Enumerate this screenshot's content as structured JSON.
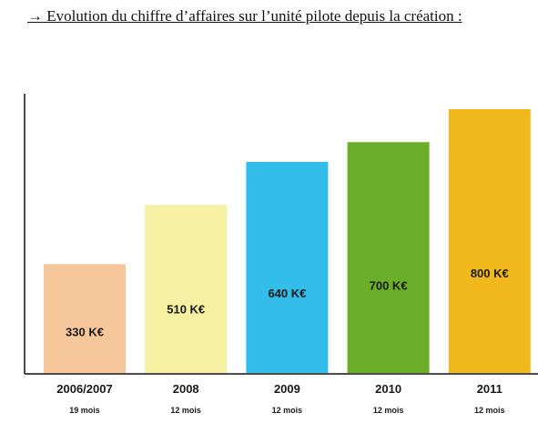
{
  "title": "→  Evolution du chiffre d’affaires sur l’unité pilote depuis la création :",
  "chart_data": {
    "type": "bar",
    "categories": [
      "2006/2007",
      "2008",
      "2009",
      "2010",
      "2011"
    ],
    "sublabels": [
      "19 mois",
      "12 mois",
      "12 mois",
      "12 mois",
      "12 mois"
    ],
    "values": [
      330,
      510,
      640,
      700,
      800
    ],
    "value_labels": [
      "330 K€",
      "510 K€",
      "640 K€",
      "700 K€",
      "800 K€"
    ],
    "colors": [
      "#f6c79a",
      "#f6f0a2",
      "#33bde9",
      "#6aae2a",
      "#f2b91d"
    ],
    "title": "",
    "xlabel": "",
    "ylabel": "",
    "grid": false,
    "legend": "none"
  }
}
